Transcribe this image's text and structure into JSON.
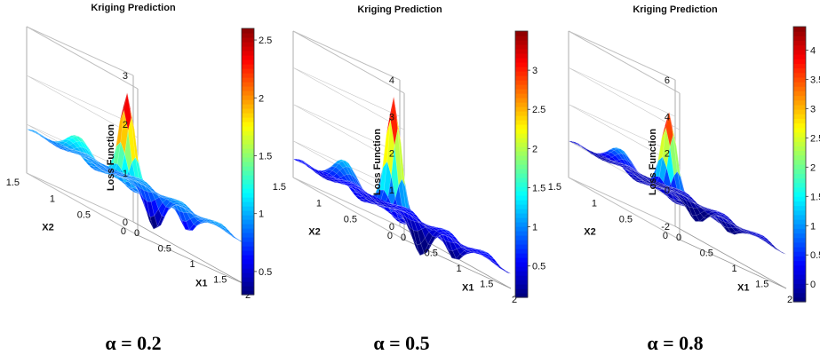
{
  "colors": {
    "jet": [
      "#00007f",
      "#0000ff",
      "#007fff",
      "#00ffff",
      "#7fff7f",
      "#ffff00",
      "#ff7f00",
      "#ff0000",
      "#7f0000"
    ]
  },
  "chart_data": [
    {
      "type": "surface",
      "title": "Kriging Prediction",
      "caption": "α = 0.2",
      "xlabel": "X1",
      "ylabel": "X2",
      "zlabel": "Loss Function",
      "xlim": [
        0,
        2
      ],
      "ylim": [
        0,
        1.5
      ],
      "zlim": [
        0,
        3
      ],
      "x_ticks": [
        "0",
        "0.5",
        "1",
        "1.5",
        "2"
      ],
      "y_ticks": [
        "0",
        "0.5",
        "1",
        "1.5"
      ],
      "z_ticks": [
        "0",
        "1",
        "2",
        "3"
      ],
      "colorbar": {
        "range": [
          0.3,
          2.6
        ],
        "ticks": [
          "0.5",
          "1",
          "1.5",
          "2",
          "2.5"
        ]
      },
      "surface": {
        "base": 0.9,
        "peak": {
          "x1": 1.3,
          "x2": 1.1,
          "z": 2.7
        },
        "ridge": {
          "x1": 0.7,
          "x2": 1.3,
          "z": 1.6
        },
        "min": {
          "x1": 0.9,
          "x2": 0.4,
          "z": 0.2
        }
      }
    },
    {
      "type": "surface",
      "title": "Kriging Prediction",
      "caption": "α = 0.5",
      "xlabel": "X1",
      "ylabel": "X2",
      "zlabel": "Loss Function",
      "xlim": [
        0,
        2
      ],
      "ylim": [
        0,
        1.5
      ],
      "zlim": [
        0,
        4
      ],
      "x_ticks": [
        "0",
        "0.5",
        "1",
        "1.5",
        "2"
      ],
      "y_ticks": [
        "0",
        "0.5",
        "1",
        "1.5"
      ],
      "z_ticks": [
        "0",
        "1",
        "2",
        "3",
        "4"
      ],
      "colorbar": {
        "range": [
          0.1,
          3.5
        ],
        "ticks": [
          "0.5",
          "1",
          "1.5",
          "2",
          "2.5",
          "3"
        ]
      },
      "surface": {
        "base": 0.5,
        "peak": {
          "x1": 1.3,
          "x2": 1.1,
          "z": 3.6
        },
        "ridge": {
          "x1": 0.7,
          "x2": 1.3,
          "z": 1.7
        },
        "min": {
          "x1": 0.9,
          "x2": 0.4,
          "z": -0.3
        }
      }
    },
    {
      "type": "surface",
      "title": "Kriging Prediction",
      "caption": "α = 0.8",
      "xlabel": "X1",
      "ylabel": "X2",
      "zlabel": "Loss Function",
      "xlim": [
        0,
        2
      ],
      "ylim": [
        0,
        1.5
      ],
      "zlim": [
        -2,
        6
      ],
      "x_ticks": [
        "0",
        "0.5",
        "1",
        "1.5",
        "2"
      ],
      "y_ticks": [
        "0",
        "0.5",
        "1",
        "1.5"
      ],
      "z_ticks": [
        "-2",
        "0",
        "2",
        "4",
        "6"
      ],
      "colorbar": {
        "range": [
          -0.3,
          4.4
        ],
        "ticks": [
          "0",
          "0.5",
          "1",
          "1.5",
          "2",
          "2.5",
          "3",
          "3.5",
          "4"
        ]
      },
      "surface": {
        "base": 0.0,
        "peak": {
          "x1": 1.3,
          "x2": 1.1,
          "z": 4.4
        },
        "ridge": {
          "x1": 0.7,
          "x2": 1.3,
          "z": 1.8
        },
        "min": {
          "x1": 0.9,
          "x2": 0.4,
          "z": -0.8
        }
      }
    }
  ]
}
